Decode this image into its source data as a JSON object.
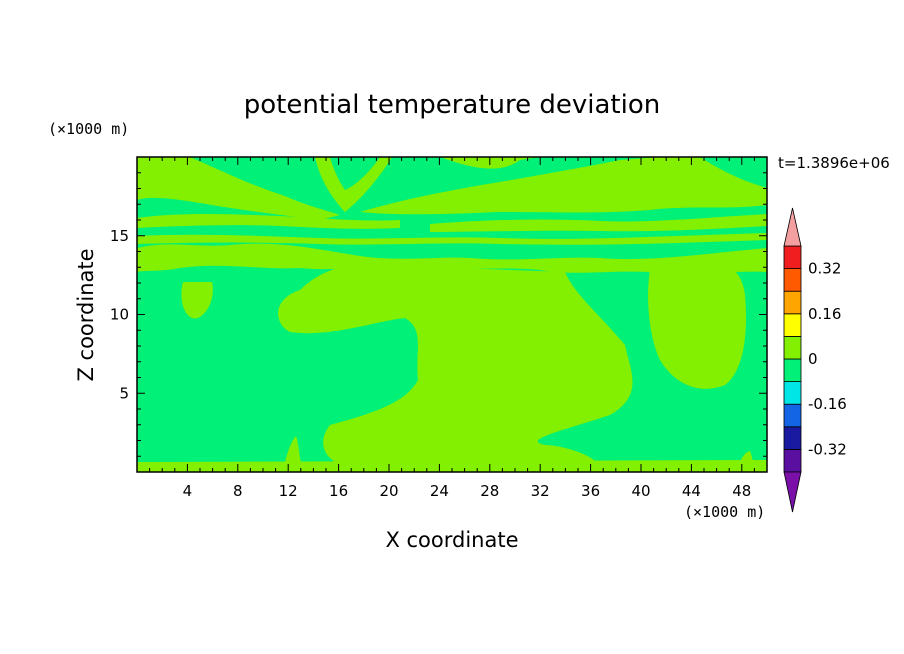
{
  "chart_data": {
    "type": "heatmap",
    "title": "potential temperature deviation",
    "xlabel": "X coordinate",
    "ylabel": "Z coordinate",
    "x_unit": "(×1000 m)",
    "y_unit": "(×1000 m)",
    "time_label": "t=1.3896e+06",
    "xlim": [
      0,
      50
    ],
    "ylim": [
      0,
      20
    ],
    "x_ticks": [
      4,
      8,
      12,
      16,
      20,
      24,
      28,
      32,
      36,
      40,
      44,
      48
    ],
    "y_ticks": [
      5,
      10,
      15
    ],
    "colorbar": {
      "levels": [
        -0.4,
        -0.32,
        -0.24,
        -0.16,
        -0.08,
        0,
        0.08,
        0.16,
        0.24,
        0.32,
        0.4
      ],
      "tick_labels": [
        "0.32",
        "0.16",
        "0",
        "-0.16",
        "-0.32"
      ],
      "tick_values": [
        0.32,
        0.16,
        0,
        -0.16,
        -0.32
      ],
      "colors_low_to_high": [
        "#5a0fa0",
        "#1a1aa0",
        "#1464e6",
        "#00e6e6",
        "#00f078",
        "#82f000",
        "#ffff00",
        "#ffa500",
        "#ff5a00",
        "#f01e1e"
      ],
      "under_color": "#7a10a8",
      "over_color": "#f4a0a0"
    },
    "field_colors": {
      "negative_band": "#00f078",
      "positive_band": "#82f000"
    }
  }
}
